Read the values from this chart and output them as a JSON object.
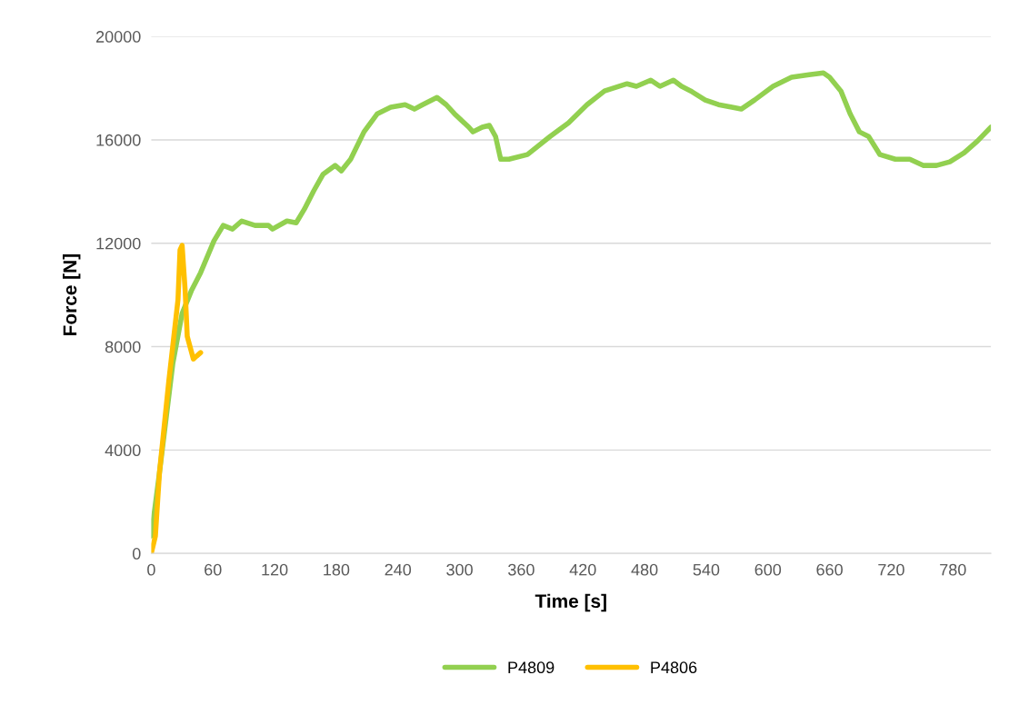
{
  "chart_data": {
    "type": "line",
    "xlabel": "Time [s]",
    "ylabel": "Force [N]",
    "xlim": [
      0,
      817
    ],
    "xticks": [
      0,
      60,
      120,
      180,
      240,
      300,
      360,
      420,
      480,
      540,
      600,
      660,
      720,
      780
    ],
    "ylim": [
      0,
      20000
    ],
    "yticks": [
      0,
      4000,
      8000,
      12000,
      16000,
      20000
    ],
    "grid": "y",
    "legend": "bottom",
    "marker": "none",
    "line_style": "solid",
    "series": [
      {
        "name": "P4809",
        "color": "#92d050",
        "x": [
          0,
          8,
          21,
          30,
          39,
          48,
          61,
          70,
          79,
          88,
          101,
          114,
          118,
          132,
          141,
          149,
          158,
          167,
          179,
          185,
          194,
          207,
          220,
          233,
          247,
          256,
          264,
          278,
          287,
          295,
          309,
          313,
          322,
          329,
          335,
          340,
          348,
          366,
          388,
          406,
          424,
          441,
          463,
          472,
          486,
          495,
          508,
          516,
          525,
          539,
          552,
          565,
          574,
          587,
          605,
          623,
          640,
          654,
          660,
          671,
          680,
          689,
          698,
          709,
          724,
          738,
          751,
          764,
          777,
          791,
          804,
          817
        ],
        "values": [
          670,
          3130,
          7350,
          9280,
          10160,
          10860,
          12090,
          12690,
          12550,
          12860,
          12690,
          12690,
          12550,
          12860,
          12790,
          13320,
          14020,
          14660,
          15010,
          14800,
          15250,
          16310,
          17010,
          17260,
          17360,
          17190,
          17360,
          17640,
          17360,
          17010,
          16490,
          16310,
          16490,
          16560,
          16130,
          15250,
          15250,
          15430,
          16130,
          16660,
          17360,
          17890,
          18170,
          18070,
          18310,
          18070,
          18310,
          18070,
          17890,
          17540,
          17360,
          17260,
          17190,
          17540,
          18070,
          18420,
          18520,
          18590,
          18420,
          17890,
          17010,
          16310,
          16130,
          15430,
          15250,
          15250,
          15010,
          15010,
          15150,
          15500,
          15960,
          16490
        ]
      },
      {
        "name": "P4806",
        "color": "#ffc000",
        "x": [
          0,
          4,
          8,
          17,
          26,
          28,
          30,
          33,
          35,
          41,
          44,
          48
        ],
        "values": [
          0,
          670,
          3130,
          6640,
          9810,
          11740,
          11920,
          10160,
          8400,
          7520,
          7630,
          7770
        ]
      }
    ]
  }
}
